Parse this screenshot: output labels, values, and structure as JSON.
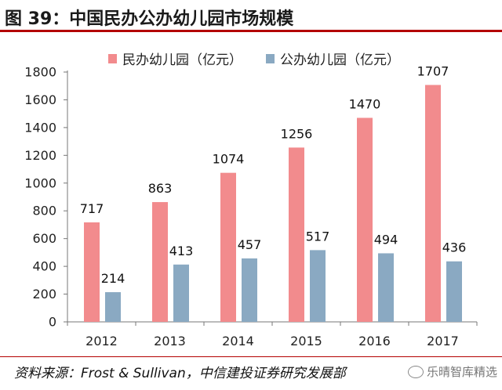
{
  "title": "图 39：中国民办公办幼儿园市场规模",
  "source": "资料来源：Frost & Sullivan，中信建投证券研究发展部",
  "watermark": "乐晴智库精选",
  "colors": {
    "private": "#f28b8d",
    "public": "#8aa9c2",
    "title_rule": "#b30000"
  },
  "chart_data": {
    "type": "bar",
    "categories": [
      "2012",
      "2013",
      "2014",
      "2015",
      "2016",
      "2017"
    ],
    "series": [
      {
        "name": "民办幼儿园（亿元）",
        "values": [
          717,
          863,
          1074,
          1256,
          1470,
          1707
        ]
      },
      {
        "name": "公办幼儿园（亿元）",
        "values": [
          214,
          413,
          457,
          517,
          494,
          436
        ]
      }
    ],
    "yticks": [
      0,
      200,
      400,
      600,
      800,
      1000,
      1200,
      1400,
      1600,
      1800
    ],
    "ylim": [
      0,
      1800
    ],
    "legend_position": "top",
    "grid": false
  }
}
